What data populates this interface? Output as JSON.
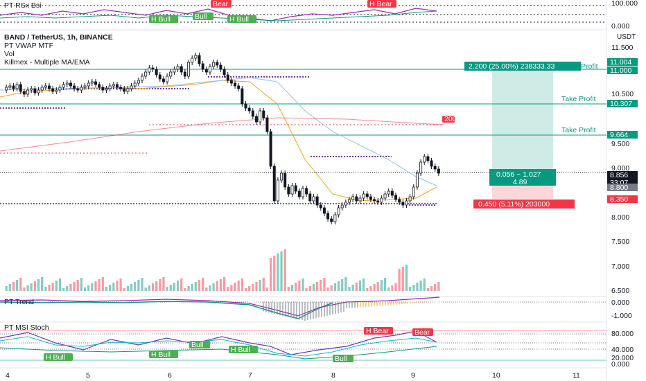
{
  "header": {
    "symbol": "BAND / TetherUS, 1h, BINANCE",
    "indicators": [
      "PT VWAP MTF",
      "Vol",
      "Killmex - Multiple MA/EMA"
    ],
    "currency": "USDT"
  },
  "panes": {
    "rsx": {
      "title": "PT RSx Bsi",
      "ticks": [
        "100.000",
        "0.000"
      ],
      "labels": [
        "H Bull",
        "Bull",
        "H Bull",
        "Bear",
        "H Bear"
      ]
    },
    "trend": {
      "title": "PT Trend",
      "ticks": [
        "0.000",
        "-1.000"
      ]
    },
    "stoch": {
      "title": "PT MSI Stoch",
      "ticks": [
        "80.000",
        "40.000",
        "20.000",
        "0.000"
      ],
      "labels": [
        "H Bull",
        "H Bull",
        "Bull",
        "H Bull",
        "Bull",
        "H Bear",
        "Bear"
      ]
    }
  },
  "price_axis": {
    "ticks": [
      "11.500",
      "10.500",
      "9.500",
      "9.000",
      "8.000",
      "7.500",
      "7.000",
      "6.500"
    ],
    "tags": [
      {
        "text": "11.004",
        "color": "#089981"
      },
      {
        "text": "11.000",
        "color": "#089981"
      },
      {
        "text": "10.307",
        "color": "#089981"
      },
      {
        "text": "9.664",
        "color": "#089981"
      },
      {
        "text": "8.856",
        "color": "#131722"
      },
      {
        "text": "33:07",
        "color": "#131722"
      },
      {
        "text": "8.800",
        "color": "#787b86"
      },
      {
        "text": "8.350",
        "color": "#f23645"
      }
    ]
  },
  "time_axis": {
    "labels": [
      "4",
      "5",
      "6",
      "7",
      "8",
      "9",
      "10",
      "11"
    ]
  },
  "position": {
    "profit_label": "2.200 (25.00%) 238333.33",
    "profit_word": "Profit",
    "take_profit_labels": [
      "Take Profit",
      "Take Profit"
    ],
    "rr_line1": "0.056 ~ 1.027",
    "rr_line2": "4.89",
    "stop_label": "0.450 (5.11%) 203000",
    "marker": "200"
  },
  "colors": {
    "up": "#089981",
    "down": "#f23645",
    "candle": "#131722",
    "purple": "#673ab7"
  }
}
